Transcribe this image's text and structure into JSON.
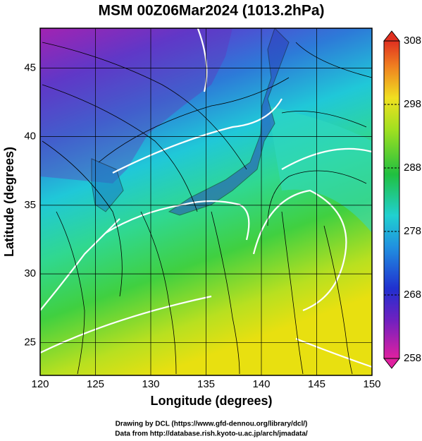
{
  "title": "MSM 00Z06Mar2024 (1013.2hPa)",
  "map": {
    "xlabel": "Longitude (degrees)",
    "ylabel": "Latitude  (degrees)",
    "lonlim": [
      120,
      150
    ],
    "lonticks": [
      120,
      125,
      130,
      135,
      140,
      145,
      150
    ],
    "latlim": [
      22.6,
      47.9
    ],
    "latticks": [
      25,
      30,
      35,
      40,
      45
    ]
  },
  "colorbar": {
    "lim": [
      258,
      308
    ],
    "ticks": [
      258,
      268,
      278,
      288,
      298,
      308
    ]
  },
  "credits": [
    "Drawing by DCL (https://www.gfd-dennou.org/library/dcl/)",
    "Data from http://database.rish.kyoto-u.ac.jp/arch/jmadata/"
  ]
}
